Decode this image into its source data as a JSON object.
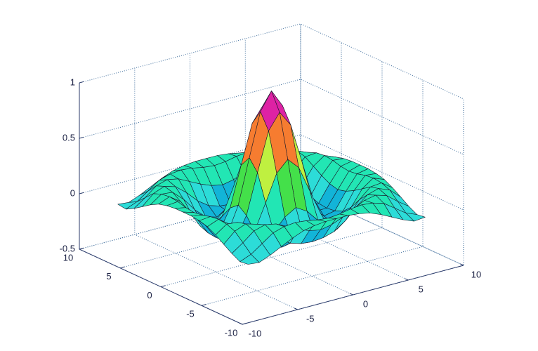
{
  "chart_data": {
    "type": "surface",
    "x": [
      -8,
      -7,
      -6,
      -5,
      -4,
      -3,
      -2,
      -1,
      0,
      1,
      2,
      3,
      4,
      5,
      6,
      7,
      8
    ],
    "y": [
      -8,
      -7,
      -6,
      -5,
      -4,
      -3,
      -2,
      -1,
      0,
      1,
      2,
      3,
      4,
      5,
      6,
      7,
      8
    ],
    "z": [
      [
        -0.08,
        -0.09,
        -0.05,
        0,
        0.05,
        0.09,
        0.11,
        0.12,
        0.12,
        0.12,
        0.11,
        0.09,
        0.05,
        0,
        -0.05,
        -0.09,
        -0.08
      ],
      [
        -0.09,
        -0.05,
        0.02,
        0.09,
        0.12,
        0.13,
        0.12,
        0.1,
        0.09,
        0.1,
        0.12,
        0.13,
        0.12,
        0.09,
        0.02,
        -0.05,
        -0.09
      ],
      [
        -0.05,
        0.02,
        0.1,
        0.13,
        0.11,
        0.06,
        0.01,
        -0.03,
        -0.05,
        -0.03,
        0.01,
        0.06,
        0.11,
        0.13,
        0.1,
        0.02,
        -0.05
      ],
      [
        0,
        0.09,
        0.13,
        0.1,
        0.02,
        -0.08,
        -0.15,
        -0.18,
        -0.19,
        -0.18,
        -0.15,
        -0.08,
        0.02,
        0.1,
        0.13,
        0.09,
        0
      ],
      [
        0.05,
        0.12,
        0.11,
        0.02,
        -0.1,
        -0.19,
        -0.22,
        -0.2,
        -0.19,
        -0.2,
        -0.22,
        -0.19,
        -0.1,
        0.02,
        0.11,
        0.12,
        0.05
      ],
      [
        0.09,
        0.13,
        0.06,
        -0.08,
        -0.19,
        -0.21,
        -0.12,
        -0.01,
        0.05,
        -0.01,
        -0.12,
        -0.21,
        -0.19,
        -0.08,
        0.06,
        0.13,
        0.09
      ],
      [
        0.11,
        0.12,
        0.01,
        -0.15,
        -0.22,
        -0.12,
        0.11,
        0.35,
        0.45,
        0.35,
        0.11,
        -0.12,
        -0.22,
        -0.15,
        0.01,
        0.12,
        0.11
      ],
      [
        0.12,
        0.1,
        -0.03,
        -0.18,
        -0.2,
        -0.01,
        0.35,
        0.7,
        0.84,
        0.7,
        0.35,
        -0.01,
        -0.2,
        -0.18,
        -0.03,
        0.1,
        0.12
      ],
      [
        0.12,
        0.09,
        -0.05,
        -0.19,
        -0.19,
        0.05,
        0.45,
        0.84,
        1,
        0.84,
        0.45,
        0.05,
        -0.19,
        -0.19,
        -0.05,
        0.09,
        0.12
      ],
      [
        0.12,
        0.1,
        -0.03,
        -0.18,
        -0.2,
        -0.01,
        0.35,
        0.7,
        0.84,
        0.7,
        0.35,
        -0.01,
        -0.2,
        -0.18,
        -0.03,
        0.1,
        0.12
      ],
      [
        0.11,
        0.12,
        0.01,
        -0.15,
        -0.22,
        -0.12,
        0.11,
        0.35,
        0.45,
        0.35,
        0.11,
        -0.12,
        -0.22,
        -0.15,
        0.01,
        0.12,
        0.11
      ],
      [
        0.09,
        0.13,
        0.06,
        -0.08,
        -0.19,
        -0.21,
        -0.12,
        -0.01,
        0.05,
        -0.01,
        -0.12,
        -0.21,
        -0.19,
        -0.08,
        0.06,
        0.13,
        0.09
      ],
      [
        0.05,
        0.12,
        0.11,
        0.02,
        -0.1,
        -0.19,
        -0.22,
        -0.2,
        -0.19,
        -0.2,
        -0.22,
        -0.19,
        -0.1,
        0.02,
        0.11,
        0.12,
        0.05
      ],
      [
        0,
        0.09,
        0.13,
        0.1,
        0.02,
        -0.08,
        -0.15,
        -0.18,
        -0.19,
        -0.18,
        -0.15,
        -0.08,
        0.02,
        0.1,
        0.13,
        0.09,
        0
      ],
      [
        -0.05,
        0.02,
        0.1,
        0.13,
        0.11,
        0.06,
        0.01,
        -0.03,
        -0.05,
        -0.03,
        0.01,
        0.06,
        0.11,
        0.13,
        0.1,
        0.02,
        -0.05
      ],
      [
        -0.09,
        -0.05,
        0.02,
        0.09,
        0.12,
        0.13,
        0.12,
        0.1,
        0.09,
        0.1,
        0.12,
        0.13,
        0.12,
        0.09,
        0.02,
        -0.05,
        -0.09
      ],
      [
        -0.08,
        -0.09,
        -0.05,
        0,
        0.05,
        0.09,
        0.11,
        0.12,
        0.12,
        0.12,
        0.11,
        0.09,
        0.05,
        0,
        -0.05,
        -0.09,
        -0.08
      ]
    ],
    "xlim": [
      -10,
      10
    ],
    "ylim": [
      -10,
      10
    ],
    "zlim": [
      -0.5,
      1
    ],
    "xticks": [
      -10,
      -5,
      0,
      5,
      10
    ],
    "yticks": [
      -10,
      -5,
      0,
      5,
      10
    ],
    "zticks": [
      -0.5,
      0,
      0.5,
      1
    ],
    "grid": true,
    "colormap": [
      "#12b4d8",
      "#2cdcd8",
      "#22e6b4",
      "#44e04a",
      "#bff040",
      "#f6da3e",
      "#f67c30",
      "#ef2c4a",
      "#de22a4",
      "#c21ed2"
    ]
  }
}
